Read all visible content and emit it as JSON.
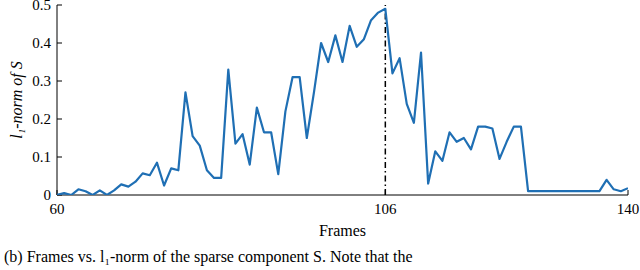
{
  "chart_data": {
    "type": "line",
    "x_label": "Frames",
    "y_label": "l₁-norm of S",
    "caption": "(b) Frames vs. l₁-norm of the sparse component S. Note that the",
    "x": [
      60,
      61,
      62,
      63,
      64,
      65,
      66,
      67,
      68,
      69,
      70,
      71,
      72,
      73,
      74,
      75,
      76,
      77,
      78,
      79,
      80,
      81,
      82,
      83,
      84,
      85,
      86,
      87,
      88,
      89,
      90,
      91,
      92,
      93,
      94,
      95,
      96,
      97,
      98,
      99,
      100,
      101,
      102,
      103,
      104,
      105,
      106,
      107,
      108,
      109,
      110,
      111,
      112,
      113,
      114,
      115,
      116,
      117,
      118,
      119,
      120,
      121,
      122,
      123,
      124,
      125,
      126,
      127,
      128,
      129,
      130,
      131,
      132,
      133,
      134,
      135,
      136,
      137,
      138,
      139,
      140
    ],
    "series": [
      {
        "name": "l₁-norm of S",
        "color": "#1f6fb4",
        "values": [
          0.0,
          0.005,
          0.0,
          0.015,
          0.01,
          0.0,
          0.012,
          0.0,
          0.012,
          0.028,
          0.022,
          0.035,
          0.057,
          0.052,
          0.085,
          0.025,
          0.07,
          0.065,
          0.27,
          0.155,
          0.13,
          0.065,
          0.045,
          0.045,
          0.33,
          0.135,
          0.16,
          0.08,
          0.23,
          0.165,
          0.165,
          0.055,
          0.22,
          0.31,
          0.31,
          0.15,
          0.27,
          0.4,
          0.35,
          0.42,
          0.35,
          0.445,
          0.39,
          0.41,
          0.46,
          0.48,
          0.49,
          0.32,
          0.36,
          0.24,
          0.19,
          0.375,
          0.03,
          0.115,
          0.09,
          0.165,
          0.14,
          0.15,
          0.12,
          0.18,
          0.18,
          0.175,
          0.095,
          0.14,
          0.18,
          0.18,
          0.01,
          0.01,
          0.01,
          0.01,
          0.01,
          0.01,
          0.01,
          0.01,
          0.01,
          0.01,
          0.01,
          0.04,
          0.015,
          0.01,
          0.018
        ]
      }
    ],
    "vertical_line": 106,
    "xlim": [
      60,
      140
    ],
    "xticks": [
      60,
      106,
      140
    ],
    "ylim": [
      0,
      0.5
    ],
    "yticks": [
      0,
      0.1,
      0.2,
      0.3,
      0.4,
      0.5
    ],
    "grid": false
  }
}
